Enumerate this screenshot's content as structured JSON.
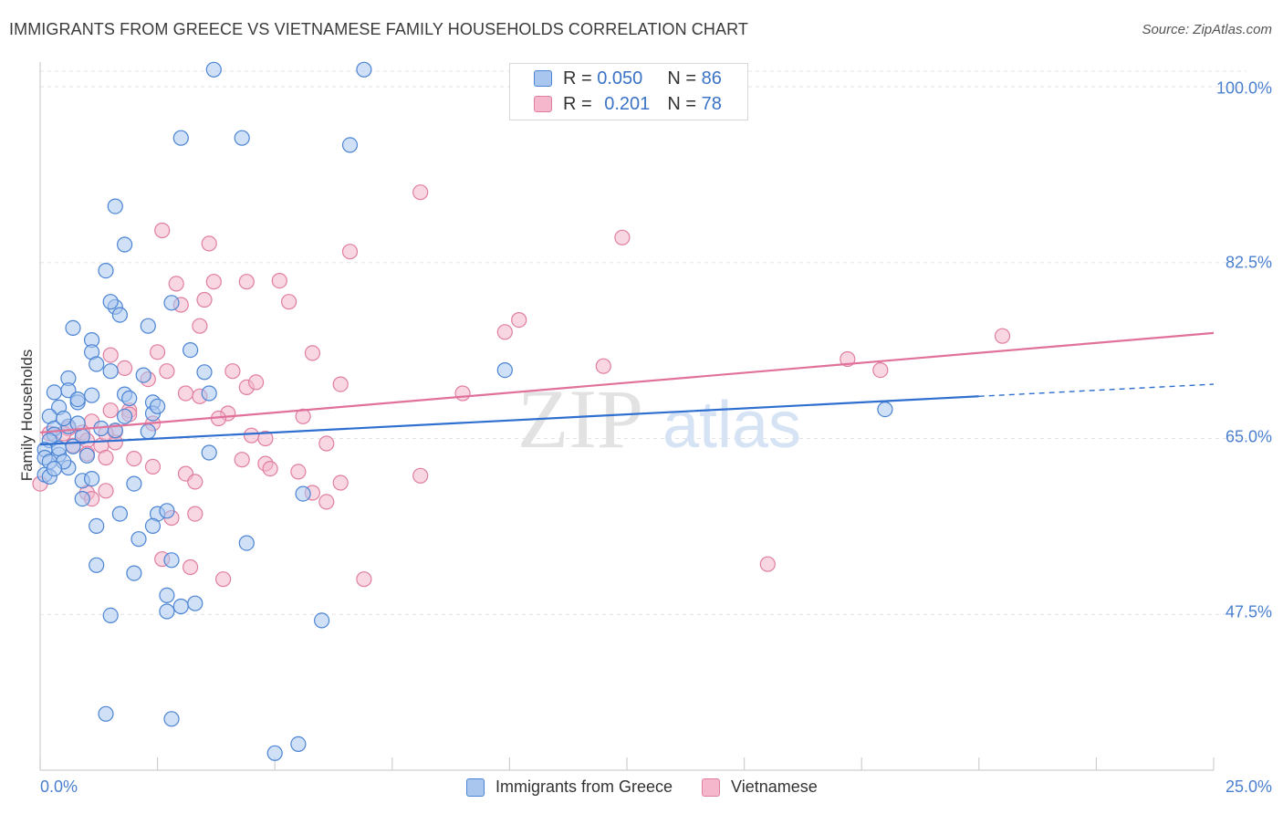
{
  "header": {
    "title": "IMMIGRANTS FROM GREECE VS VIETNAMESE FAMILY HOUSEHOLDS CORRELATION CHART",
    "source": "Source: ZipAtlas.com"
  },
  "watermark": {
    "zip": "ZIP",
    "atlas": "atlas"
  },
  "legend_top": {
    "rows": [
      {
        "r_key": "R =",
        "r_value": "0.050",
        "n_key": "N =",
        "n_value": "86"
      },
      {
        "r_key": "R =",
        "r_value": "0.201",
        "n_key": "N =",
        "n_value": "78"
      }
    ]
  },
  "colors": {
    "blue_fill": "#a9c6ef",
    "blue_stroke": "#4b84d4",
    "blue_line": "#2f6fcf",
    "pink_fill": "#f4b7cb",
    "pink_stroke": "#e07ea0",
    "pink_line": "#e0719a",
    "tick_label": "#4a7fd0",
    "grid": "#e3e3e3"
  },
  "chart_data": {
    "type": "scatter",
    "title": "IMMIGRANTS FROM GREECE VS VIETNAMESE FAMILY HOUSEHOLDS CORRELATION CHART",
    "xlabel": "",
    "ylabel": "Family Households",
    "xlim": [
      0,
      25
    ],
    "ylim": [
      32,
      103
    ],
    "x_tick_labels": [
      "0.0%",
      "25.0%"
    ],
    "y_ticks": [
      47.5,
      65.0,
      82.5,
      100.0
    ],
    "y_tick_labels": [
      "47.5%",
      "65.0%",
      "82.5%",
      "100.0%"
    ],
    "legend_position": "bottom-center",
    "series": [
      {
        "name": "Immigrants from Greece",
        "color": "blue",
        "R": 0.05,
        "N": 86,
        "trend": {
          "x0": 0,
          "y0": 64.4,
          "x1": 20,
          "y1": 69.2,
          "dash_to_x": 25,
          "dash_to_y": 70.4
        },
        "points": [
          [
            3.7,
            101.7
          ],
          [
            6.9,
            101.7
          ],
          [
            3.0,
            94.9
          ],
          [
            4.3,
            94.9
          ],
          [
            6.6,
            94.2
          ],
          [
            1.6,
            88.1
          ],
          [
            1.8,
            84.3
          ],
          [
            1.4,
            81.7
          ],
          [
            1.6,
            78.1
          ],
          [
            1.5,
            78.6
          ],
          [
            2.8,
            78.5
          ],
          [
            1.7,
            77.3
          ],
          [
            2.3,
            76.2
          ],
          [
            0.7,
            76.0
          ],
          [
            1.1,
            74.8
          ],
          [
            1.1,
            73.6
          ],
          [
            3.2,
            73.8
          ],
          [
            1.2,
            72.4
          ],
          [
            1.5,
            71.7
          ],
          [
            2.2,
            71.3
          ],
          [
            3.5,
            71.6
          ],
          [
            0.6,
            71.0
          ],
          [
            0.6,
            69.8
          ],
          [
            1.1,
            69.3
          ],
          [
            1.8,
            69.4
          ],
          [
            2.4,
            68.6
          ],
          [
            0.3,
            69.6
          ],
          [
            0.4,
            68.1
          ],
          [
            0.8,
            68.6
          ],
          [
            0.2,
            67.2
          ],
          [
            2.4,
            67.5
          ],
          [
            1.8,
            67.2
          ],
          [
            0.3,
            66.0
          ],
          [
            0.3,
            65.4
          ],
          [
            0.6,
            66.2
          ],
          [
            0.9,
            65.2
          ],
          [
            0.2,
            64.8
          ],
          [
            0.1,
            63.9
          ],
          [
            0.4,
            63.4
          ],
          [
            0.1,
            63.1
          ],
          [
            0.2,
            62.7
          ],
          [
            0.6,
            62.1
          ],
          [
            0.1,
            61.4
          ],
          [
            0.2,
            61.2
          ],
          [
            0.9,
            60.8
          ],
          [
            1.1,
            61.0
          ],
          [
            3.6,
            63.6
          ],
          [
            5.6,
            59.5
          ],
          [
            0.9,
            59.0
          ],
          [
            1.7,
            57.5
          ],
          [
            2.5,
            57.5
          ],
          [
            2.7,
            57.8
          ],
          [
            1.2,
            56.3
          ],
          [
            2.4,
            56.3
          ],
          [
            2.1,
            55.0
          ],
          [
            4.4,
            54.6
          ],
          [
            2.8,
            52.9
          ],
          [
            1.2,
            52.4
          ],
          [
            2.0,
            51.6
          ],
          [
            2.7,
            49.4
          ],
          [
            3.0,
            48.3
          ],
          [
            3.3,
            48.6
          ],
          [
            1.5,
            47.4
          ],
          [
            2.7,
            47.8
          ],
          [
            6.0,
            46.9
          ],
          [
            1.4,
            37.6
          ],
          [
            2.8,
            37.1
          ],
          [
            5.5,
            34.6
          ],
          [
            5.0,
            33.7
          ],
          [
            9.9,
            71.8
          ],
          [
            18.0,
            67.9
          ],
          [
            3.6,
            69.5
          ],
          [
            2.5,
            68.2
          ],
          [
            1.3,
            66.0
          ],
          [
            0.8,
            66.5
          ],
          [
            0.4,
            64.0
          ],
          [
            0.7,
            64.2
          ],
          [
            1.0,
            63.3
          ],
          [
            0.5,
            62.7
          ],
          [
            0.3,
            62.0
          ],
          [
            1.6,
            65.8
          ],
          [
            2.3,
            65.7
          ],
          [
            1.9,
            69.0
          ],
          [
            0.8,
            68.9
          ],
          [
            0.5,
            67.0
          ],
          [
            2.0,
            60.5
          ]
        ]
      },
      {
        "name": "Vietnamese",
        "color": "pink",
        "R": 0.201,
        "N": 78,
        "trend": {
          "x0": 0,
          "y0": 65.6,
          "x1": 25,
          "y1": 75.5
        },
        "points": [
          [
            8.1,
            89.5
          ],
          [
            12.4,
            85.0
          ],
          [
            2.6,
            85.7
          ],
          [
            3.6,
            84.4
          ],
          [
            6.6,
            83.6
          ],
          [
            2.9,
            80.4
          ],
          [
            3.7,
            80.6
          ],
          [
            4.4,
            80.6
          ],
          [
            5.1,
            80.7
          ],
          [
            3.5,
            78.8
          ],
          [
            3.0,
            78.3
          ],
          [
            5.3,
            78.6
          ],
          [
            10.2,
            76.8
          ],
          [
            9.9,
            75.6
          ],
          [
            3.4,
            76.2
          ],
          [
            20.5,
            75.2
          ],
          [
            2.5,
            73.6
          ],
          [
            1.5,
            73.3
          ],
          [
            5.8,
            73.5
          ],
          [
            12.0,
            72.2
          ],
          [
            17.2,
            72.9
          ],
          [
            17.9,
            71.8
          ],
          [
            1.8,
            72.0
          ],
          [
            2.7,
            71.7
          ],
          [
            4.1,
            71.7
          ],
          [
            2.3,
            70.9
          ],
          [
            4.4,
            70.1
          ],
          [
            4.6,
            70.6
          ],
          [
            6.4,
            70.4
          ],
          [
            3.1,
            69.5
          ],
          [
            3.4,
            69.2
          ],
          [
            9.0,
            69.5
          ],
          [
            1.5,
            67.8
          ],
          [
            1.9,
            67.8
          ],
          [
            4.0,
            67.5
          ],
          [
            3.8,
            67.0
          ],
          [
            1.1,
            66.7
          ],
          [
            1.6,
            65.7
          ],
          [
            2.4,
            66.5
          ],
          [
            5.6,
            67.2
          ],
          [
            0.6,
            66.0
          ],
          [
            0.5,
            65.5
          ],
          [
            0.9,
            65.6
          ],
          [
            1.0,
            64.8
          ],
          [
            1.6,
            64.6
          ],
          [
            1.3,
            64.3
          ],
          [
            4.5,
            65.3
          ],
          [
            4.8,
            65.0
          ],
          [
            6.1,
            64.5
          ],
          [
            0.7,
            64.3
          ],
          [
            1.0,
            63.5
          ],
          [
            1.4,
            63.1
          ],
          [
            2.0,
            63.0
          ],
          [
            4.3,
            62.9
          ],
          [
            4.8,
            62.5
          ],
          [
            2.4,
            62.2
          ],
          [
            4.9,
            62.0
          ],
          [
            5.5,
            61.7
          ],
          [
            3.1,
            61.5
          ],
          [
            8.1,
            61.3
          ],
          [
            3.3,
            60.7
          ],
          [
            6.4,
            60.6
          ],
          [
            5.8,
            59.6
          ],
          [
            6.1,
            58.7
          ],
          [
            1.4,
            59.8
          ],
          [
            1.0,
            59.6
          ],
          [
            1.1,
            59.0
          ],
          [
            2.8,
            57.1
          ],
          [
            3.3,
            57.5
          ],
          [
            2.6,
            53.0
          ],
          [
            3.2,
            52.2
          ],
          [
            3.9,
            51.0
          ],
          [
            6.9,
            51.0
          ],
          [
            15.5,
            52.5
          ],
          [
            0.2,
            65.5
          ],
          [
            0.0,
            60.5
          ],
          [
            1.9,
            67.4
          ],
          [
            1.4,
            65.5
          ]
        ]
      }
    ]
  },
  "legend_bottom": {
    "items": [
      {
        "label": "Immigrants from Greece"
      },
      {
        "label": "Vietnamese"
      }
    ]
  }
}
